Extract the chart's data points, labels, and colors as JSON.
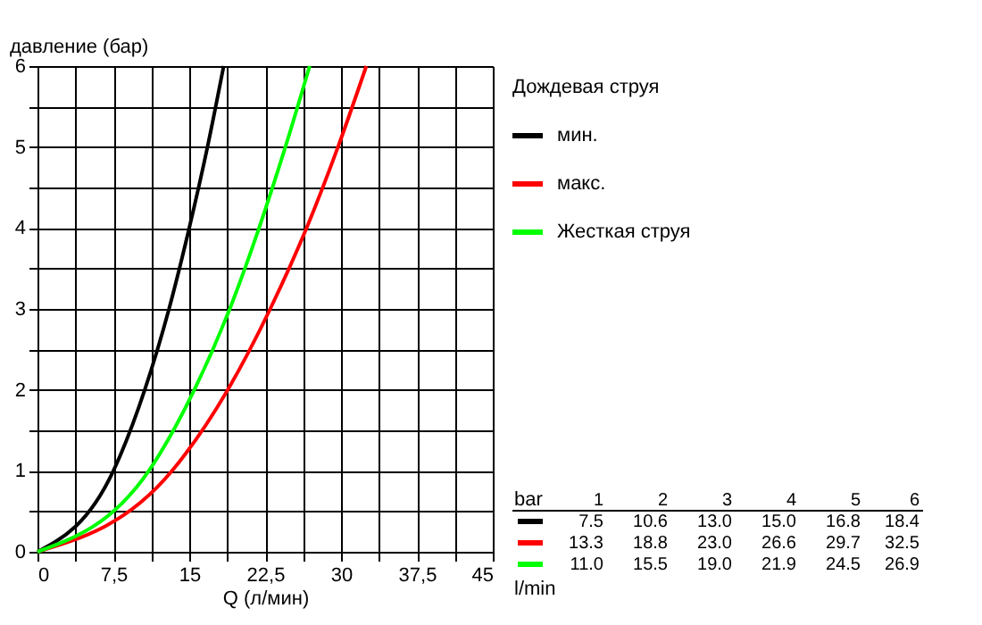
{
  "chart_data": {
    "type": "line",
    "xlabel": "Q (л/мин)",
    "ylabel": "давление (бар)",
    "legend_title": "Дождевая струя",
    "legend": "right",
    "grid": true,
    "xlim": [
      0,
      45
    ],
    "ylim": [
      0,
      6
    ],
    "xticks": [
      0,
      {
        "value": 3.75,
        "label": null
      },
      {
        "value": 7.5,
        "label": "7,5"
      },
      {
        "value": 11.25,
        "label": null
      },
      15,
      {
        "value": 18.75,
        "label": null
      },
      {
        "value": 22.5,
        "label": "22,5"
      },
      {
        "value": 26.25,
        "label": null
      },
      30,
      {
        "value": 33.75,
        "label": null
      },
      {
        "value": 37.5,
        "label": "37,5"
      },
      {
        "value": 41.25,
        "label": null
      },
      45
    ],
    "yticks": [
      0,
      {
        "value": 0.5,
        "label": null
      },
      1,
      {
        "value": 1.5,
        "label": null
      },
      2,
      {
        "value": 2.5,
        "label": null
      },
      3,
      {
        "value": 3.5,
        "label": null
      },
      4,
      {
        "value": 4.5,
        "label": null
      },
      5,
      {
        "value": 5.5,
        "label": null
      },
      6
    ],
    "annotations": [
      "bar",
      "1",
      "2",
      "3",
      "4",
      "5",
      "6",
      "7.5",
      "10.6",
      "13.0",
      "15.0",
      "16.8",
      "18.4",
      "13.3",
      "18.8",
      "23.0",
      "26.6",
      "29.7",
      "32.5",
      "11.0",
      "15.5",
      "19.0",
      "21.9",
      "24.5",
      "26.9",
      "l/min"
    ],
    "series": [
      {
        "name": "мин.",
        "color": "#000000",
        "x": [
          0,
          7.5,
          10.6,
          13.0,
          15.0,
          16.8,
          18.4
        ],
        "values": [
          0,
          1,
          2,
          3,
          4,
          5,
          6
        ]
      },
      {
        "name": "макс.",
        "color": "#ff0000",
        "x": [
          0,
          13.3,
          18.8,
          23.0,
          26.6,
          29.7,
          32.5
        ],
        "values": [
          0,
          1,
          2,
          3,
          4,
          5,
          6
        ]
      },
      {
        "name": "Жесткая струя",
        "color": "#00ff00",
        "x": [
          0,
          11.0,
          15.5,
          19.0,
          21.9,
          24.5,
          26.9
        ],
        "values": [
          0,
          1,
          2,
          3,
          4,
          5,
          6
        ]
      }
    ]
  }
}
